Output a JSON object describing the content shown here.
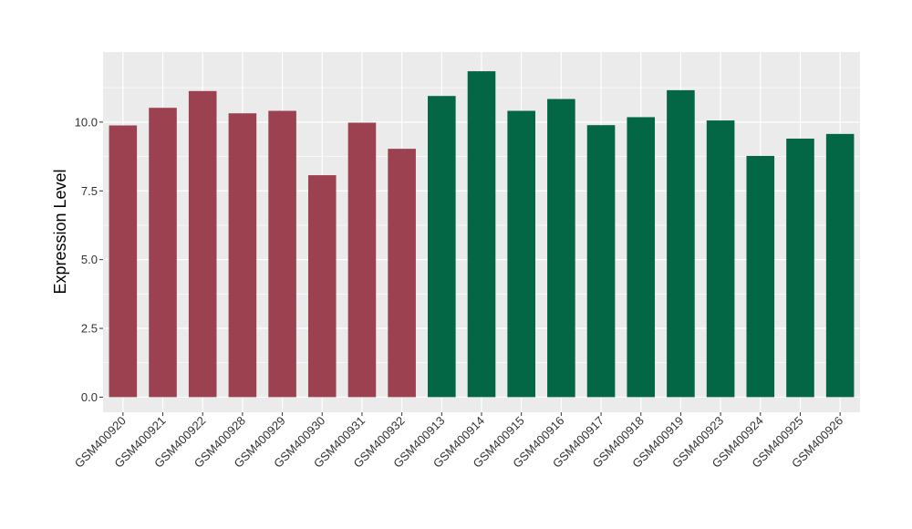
{
  "chart_data": {
    "type": "bar",
    "ylabel": "Expression Level",
    "xlabel": "",
    "ylim": [
      -0.55,
      12.55
    ],
    "yticks": [
      0.0,
      2.5,
      5.0,
      7.5,
      10.0
    ],
    "ytick_labels": [
      "0.0",
      "2.5",
      "5.0",
      "7.5",
      "10.0"
    ],
    "grid": true,
    "legend": "none",
    "categories": [
      "GSM400920",
      "GSM400921",
      "GSM400922",
      "GSM400928",
      "GSM400929",
      "GSM400930",
      "GSM400931",
      "GSM400932",
      "GSM400913",
      "GSM400914",
      "GSM400915",
      "GSM400916",
      "GSM400917",
      "GSM400918",
      "GSM400919",
      "GSM400923",
      "GSM400924",
      "GSM400925",
      "GSM400926"
    ],
    "values": [
      9.88,
      10.52,
      11.13,
      10.32,
      10.41,
      8.07,
      9.98,
      9.03,
      10.95,
      11.85,
      10.41,
      10.84,
      9.89,
      10.18,
      11.16,
      10.06,
      8.77,
      9.4,
      9.57
    ],
    "bar_colors": [
      "#9B4150",
      "#9B4150",
      "#9B4150",
      "#9B4150",
      "#9B4150",
      "#9B4150",
      "#9B4150",
      "#9B4150",
      "#036644",
      "#036644",
      "#036644",
      "#036644",
      "#036644",
      "#036644",
      "#036644",
      "#036644",
      "#036644",
      "#036644",
      "#036644"
    ],
    "colors": {
      "panel_bg": "#EBEBEB",
      "grid": "#FFFFFF"
    }
  }
}
